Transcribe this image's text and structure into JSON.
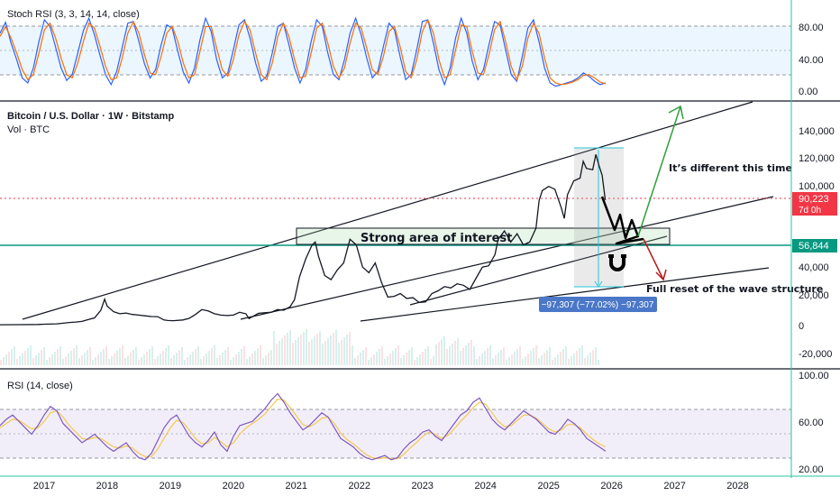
{
  "chart_data": {
    "type": "line",
    "title": "Bitcoin / U.S. Dollar · 1W · Bitstamp",
    "subtitle": "Vol · BTC",
    "stoch_rsi": {
      "title": "Stoch RSI (3, 3, 14, 14, close)",
      "y_ticks": [
        "80.00",
        "40.00",
        "0.00"
      ],
      "ylim": [
        0,
        100
      ],
      "band": [
        20,
        80
      ],
      "k": [
        72,
        85,
        60,
        40,
        18,
        12,
        30,
        62,
        88,
        80,
        55,
        30,
        15,
        22,
        48,
        75,
        90,
        70,
        45,
        22,
        10,
        26,
        55,
        84,
        86,
        62,
        35,
        18,
        28,
        58,
        82,
        78,
        50,
        25,
        12,
        30,
        64,
        90,
        74,
        40,
        18,
        24,
        52,
        82,
        88,
        66,
        36,
        14,
        20,
        48,
        80,
        84,
        58,
        30,
        12,
        28,
        62,
        88,
        80,
        48,
        22,
        16,
        40,
        72,
        90,
        70,
        42,
        18,
        26,
        56,
        84,
        76,
        44,
        16,
        22,
        52,
        86,
        88,
        60,
        28,
        10,
        30,
        66,
        90,
        72,
        38,
        16,
        28,
        58,
        86,
        82,
        52,
        22,
        14,
        44,
        78,
        88,
        62,
        30,
        12,
        8,
        10,
        12,
        14,
        18,
        24,
        20,
        14,
        10,
        12
      ],
      "d": [
        68,
        80,
        66,
        48,
        28,
        16,
        22,
        48,
        76,
        84,
        66,
        42,
        22,
        18,
        36,
        62,
        84,
        78,
        56,
        32,
        16,
        18,
        42,
        72,
        86,
        72,
        46,
        24,
        22,
        44,
        72,
        80,
        62,
        36,
        18,
        22,
        50,
        80,
        80,
        54,
        28,
        20,
        40,
        70,
        86,
        76,
        48,
        22,
        16,
        36,
        68,
        84,
        68,
        40,
        18,
        20,
        48,
        78,
        84,
        60,
        32,
        18,
        30,
        60,
        84,
        78,
        54,
        28,
        22,
        44,
        74,
        80,
        56,
        26,
        18,
        40,
        74,
        88,
        72,
        40,
        18,
        22,
        52,
        82,
        80,
        50,
        24,
        22,
        46,
        76,
        86,
        62,
        32,
        16,
        32,
        66,
        84,
        72,
        42,
        18,
        12,
        10,
        11,
        13,
        16,
        21,
        22,
        18,
        13,
        11
      ]
    },
    "price": {
      "x_ticks": [
        "2017",
        "2018",
        "2019",
        "2020",
        "2021",
        "2022",
        "2023",
        "2024",
        "2025",
        "2026",
        "2027",
        "2028"
      ],
      "x_range": [
        2016.3,
        2028.85
      ],
      "y_ticks": [
        "140,000",
        "120,000",
        "100,000",
        "80,000",
        "60,000",
        "40,000",
        "20,000",
        "0",
        "-20,000"
      ],
      "ylim": [
        -26000,
        150000
      ],
      "series": [
        {
          "x": [
            2016.3,
            2016.6,
            2016.9,
            2017.0,
            2017.2,
            2017.4,
            2017.5,
            2017.6,
            2017.7,
            2017.8,
            2017.9,
            2017.96,
            2018.0,
            2018.1,
            2018.2,
            2018.3,
            2018.4,
            2018.5,
            2018.6,
            2018.7,
            2018.8,
            2018.9,
            2018.96,
            2019.05,
            2019.2,
            2019.3,
            2019.4,
            2019.5,
            2019.6,
            2019.7,
            2019.8,
            2019.9,
            2020.0,
            2020.1,
            2020.2,
            2020.25,
            2020.4,
            2020.5,
            2020.6,
            2020.7,
            2020.8,
            2020.9,
            2020.97,
            2021.05,
            2021.15,
            2021.25,
            2021.3,
            2021.35,
            2021.45,
            2021.55,
            2021.65,
            2021.75,
            2021.85,
            2021.95,
            2022.05,
            2022.15,
            2022.25,
            2022.35,
            2022.45,
            2022.55,
            2022.65,
            2022.75,
            2022.85,
            2022.95,
            2023.05,
            2023.15,
            2023.25,
            2023.35,
            2023.45,
            2023.55,
            2023.65,
            2023.75,
            2023.85,
            2023.95,
            2024.05,
            2024.15,
            2024.2,
            2024.3,
            2024.4,
            2024.5,
            2024.6,
            2024.7,
            2024.8,
            2024.85,
            2024.9,
            2025.0,
            2025.1,
            2025.2,
            2025.25,
            2025.3,
            2025.4,
            2025.5,
            2025.55,
            2025.6,
            2025.7,
            2025.75,
            2025.8,
            2025.85,
            2025.9
          ],
          "y": [
            600,
            650,
            750,
            1000,
            1200,
            2200,
            2500,
            3000,
            4300,
            5500,
            11000,
            19000,
            14000,
            10000,
            8500,
            9000,
            8000,
            7500,
            7000,
            6500,
            6400,
            4000,
            3600,
            3500,
            4000,
            5200,
            8000,
            11500,
            10500,
            8500,
            7500,
            7200,
            7500,
            9500,
            8500,
            5000,
            8800,
            9200,
            9500,
            11500,
            11000,
            13500,
            18500,
            35000,
            48000,
            58000,
            60000,
            50000,
            36000,
            33000,
            40000,
            45000,
            62000,
            58000,
            42000,
            38000,
            45000,
            31000,
            20500,
            21000,
            23000,
            19500,
            20000,
            16500,
            17000,
            23000,
            25000,
            28000,
            27000,
            30000,
            29000,
            26000,
            34000,
            42000,
            43000,
            51000,
            62000,
            68000,
            60000,
            66000,
            58000,
            60000,
            70000,
            90000,
            97000,
            100000,
            98000,
            85000,
            77000,
            94000,
            104000,
            106000,
            118000,
            113000,
            112000,
            123000,
            115000,
            108000,
            90223
          ]
        }
      ],
      "current_price": "90,223",
      "current_countdown": "7d 0h",
      "level_label": "56,844",
      "measure_label": "−97,307 (−77.02%) −97,307",
      "annotations": {
        "zone": "Strong area of interest",
        "bull": "It’s different this time",
        "bear": "Full reset of the wave structure"
      }
    },
    "rsi": {
      "title": "RSI (14, close)",
      "y_ticks": [
        "100.00",
        "60.00",
        "20.00"
      ],
      "ylim": [
        16,
        104
      ],
      "band": [
        30,
        70
      ],
      "values": [
        60,
        66,
        70,
        64,
        58,
        52,
        60,
        70,
        78,
        74,
        62,
        56,
        50,
        44,
        48,
        52,
        46,
        40,
        36,
        40,
        44,
        36,
        30,
        28,
        34,
        46,
        58,
        66,
        70,
        60,
        50,
        44,
        40,
        46,
        54,
        42,
        36,
        50,
        60,
        62,
        64,
        70,
        76,
        84,
        90,
        82,
        72,
        64,
        56,
        60,
        66,
        72,
        68,
        58,
        48,
        44,
        40,
        34,
        30,
        28,
        30,
        32,
        28,
        30,
        38,
        44,
        48,
        54,
        56,
        50,
        46,
        54,
        62,
        70,
        74,
        82,
        86,
        76,
        66,
        60,
        56,
        62,
        68,
        74,
        70,
        66,
        60,
        54,
        52,
        58,
        66,
        62,
        56,
        48,
        44,
        40,
        36
      ],
      "ma": [
        58,
        62,
        66,
        65,
        61,
        57,
        58,
        64,
        72,
        74,
        68,
        60,
        54,
        48,
        47,
        49,
        48,
        44,
        40,
        39,
        41,
        39,
        34,
        31,
        31,
        38,
        48,
        58,
        65,
        63,
        56,
        48,
        43,
        44,
        49,
        45,
        40,
        44,
        52,
        58,
        62,
        66,
        71,
        78,
        85,
        84,
        77,
        69,
        61,
        59,
        62,
        67,
        68,
        62,
        53,
        47,
        43,
        38,
        33,
        30,
        29,
        30,
        29,
        29,
        33,
        39,
        44,
        50,
        54,
        52,
        48,
        51,
        57,
        64,
        70,
        77,
        82,
        80,
        72,
        64,
        59,
        60,
        65,
        70,
        70,
        67,
        62,
        57,
        54,
        56,
        61,
        61,
        58,
        52,
        47,
        43,
        40
      ]
    }
  }
}
